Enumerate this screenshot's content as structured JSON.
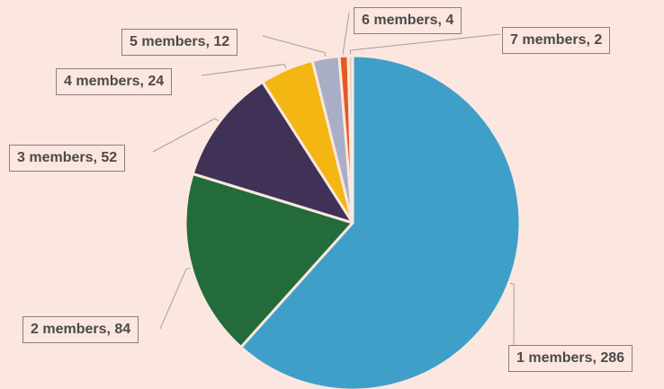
{
  "chart_data": {
    "type": "pie",
    "title": "",
    "slices": [
      {
        "label": "1 members, 286",
        "category": "1 members",
        "value": 286,
        "color": "#3f9fc9"
      },
      {
        "label": "2 members, 84",
        "category": "2 members",
        "value": 84,
        "color": "#236b3a"
      },
      {
        "label": "3 members, 52",
        "category": "3 members",
        "value": 52,
        "color": "#3f3256"
      },
      {
        "label": "4 members, 24",
        "category": "4 members",
        "value": 24,
        "color": "#f3b612"
      },
      {
        "label": "5 members, 12",
        "category": "5 members",
        "value": 12,
        "color": "#a7aec6"
      },
      {
        "label": "6 members, 4",
        "category": "6 members",
        "value": 4,
        "color": "#e45822"
      },
      {
        "label": "7 members, 2",
        "category": "7 members",
        "value": 2,
        "color": "#f4c7a6"
      }
    ],
    "direction": "clockwise",
    "start_angle": "12 o'clock",
    "legend": "none",
    "data_labels": "category, value",
    "background_color": "#fbe7df",
    "label_border_color": "#8a7f7a"
  }
}
